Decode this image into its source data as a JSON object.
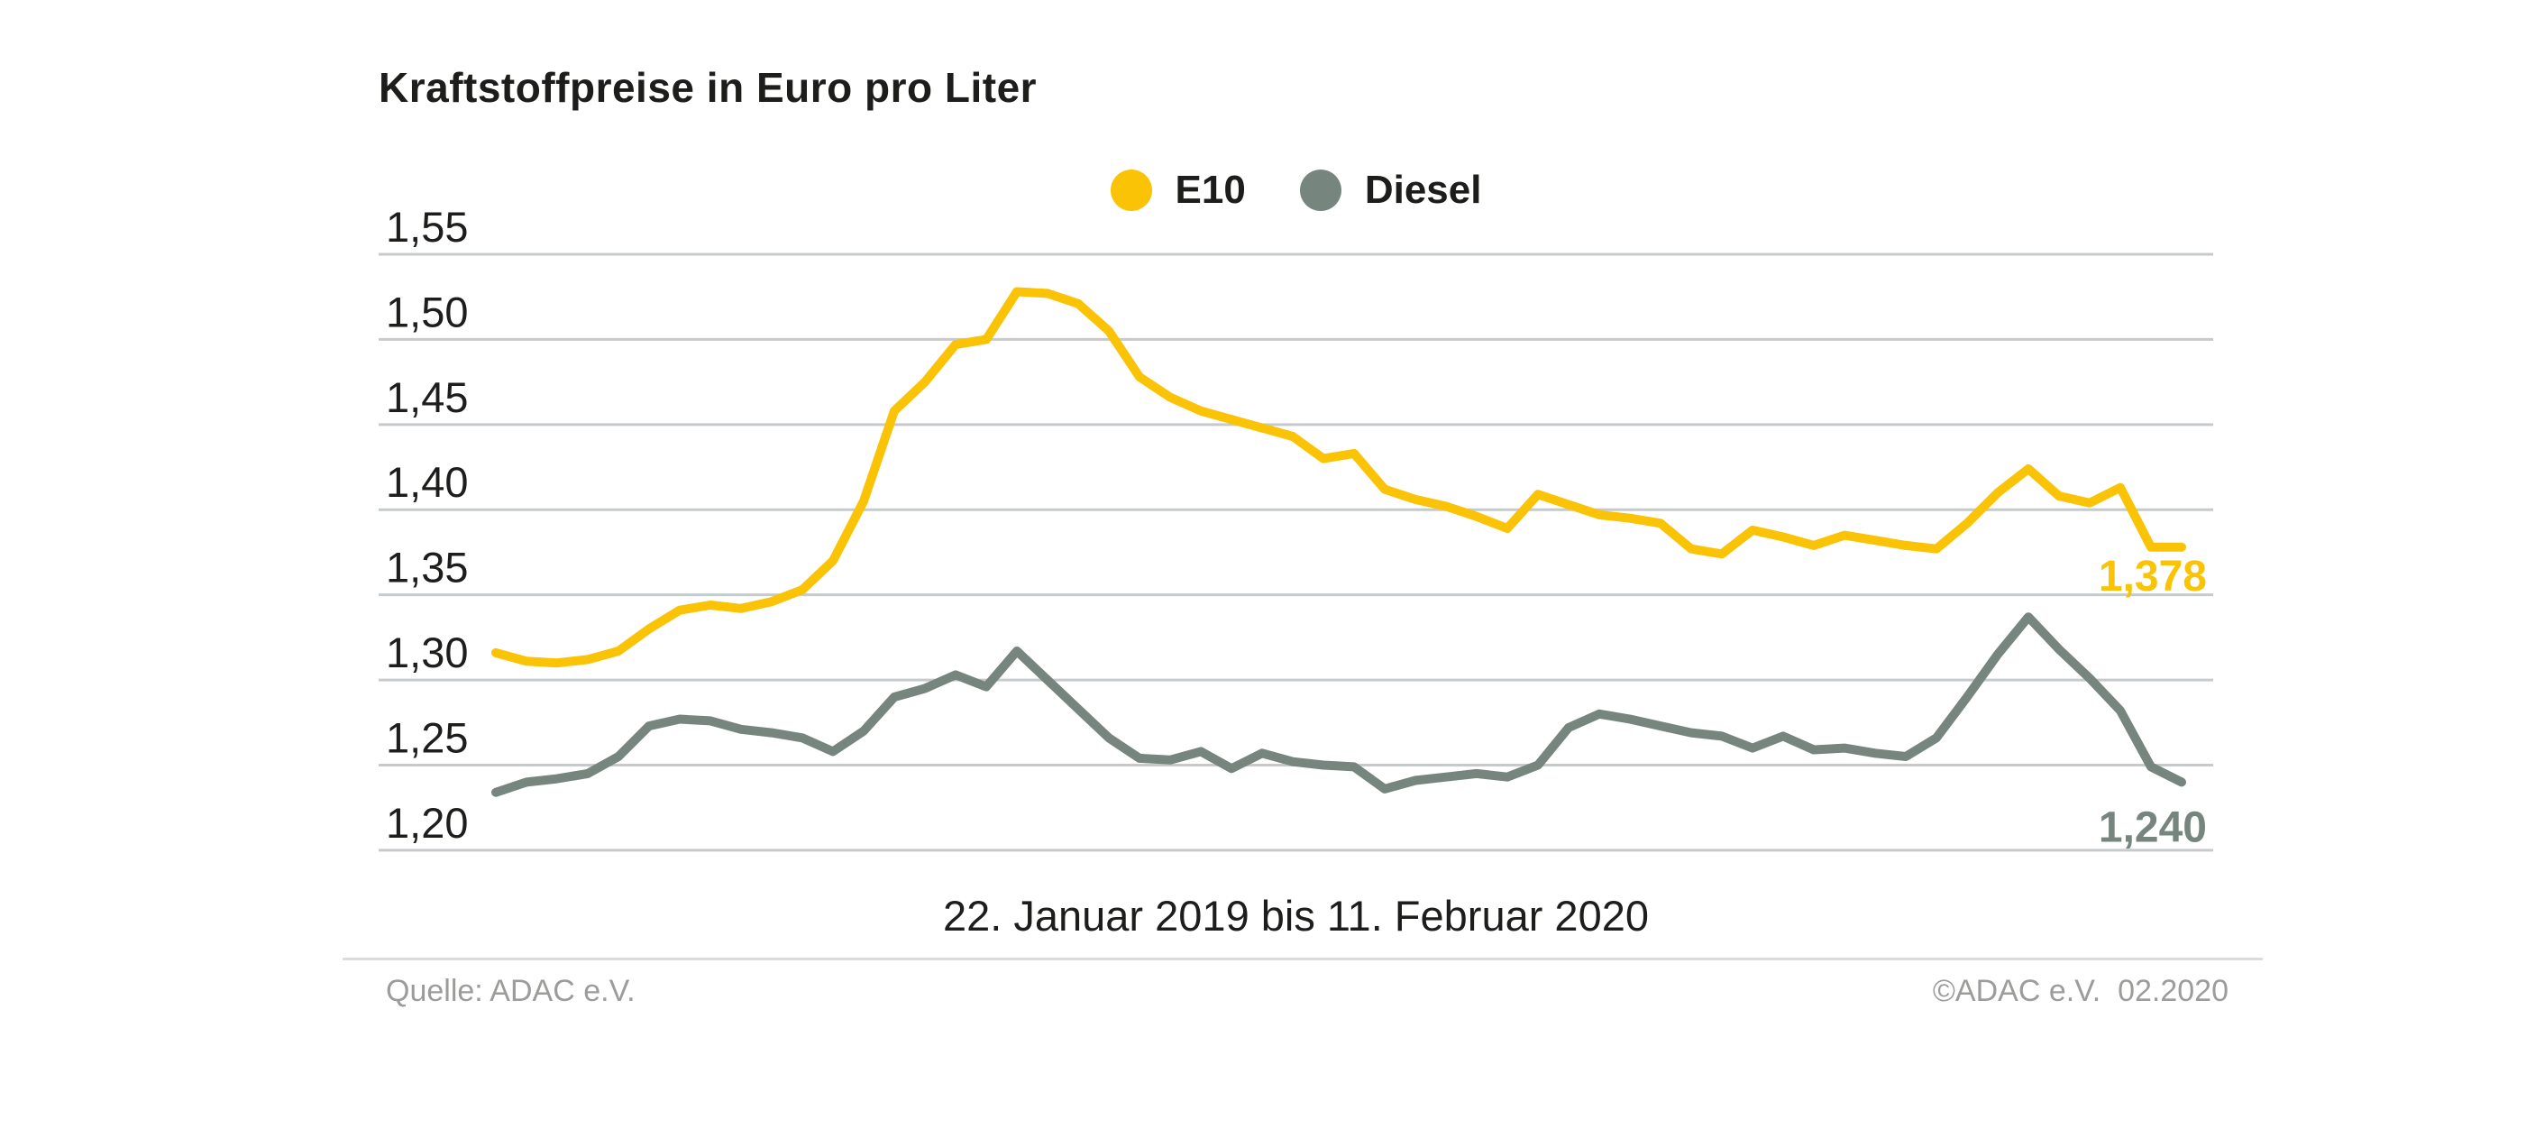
{
  "chart_data": {
    "type": "line",
    "title": "Kraftstoffpreise in Euro pro Liter",
    "x_axis_label": "22. Januar 2019 bis 11. Februar 2020",
    "x_description": "56 weekly price readings from 22 January 2019 to 11 February 2020",
    "grid": true,
    "legend_position": "top-center",
    "ylim": [
      1.2,
      1.55
    ],
    "y_ticks": [
      {
        "label": "1,55",
        "value": 1.55
      },
      {
        "label": "1,50",
        "value": 1.5
      },
      {
        "label": "1,45",
        "value": 1.45
      },
      {
        "label": "1,40",
        "value": 1.4
      },
      {
        "label": "1,35",
        "value": 1.35
      },
      {
        "label": "1,30",
        "value": 1.3
      },
      {
        "label": "1,25",
        "value": 1.25
      },
      {
        "label": "1,20",
        "value": 1.2
      }
    ],
    "series": [
      {
        "name": "E10",
        "color": "#fac306",
        "end_label": "1,378",
        "end_value": 1.378,
        "values": [
          1.316,
          1.311,
          1.31,
          1.312,
          1.317,
          1.33,
          1.341,
          1.344,
          1.342,
          1.346,
          1.353,
          1.37,
          1.405,
          1.458,
          1.475,
          1.497,
          1.5,
          1.528,
          1.527,
          1.521,
          1.505,
          1.478,
          1.466,
          1.458,
          1.453,
          1.448,
          1.443,
          1.43,
          1.433,
          1.412,
          1.406,
          1.402,
          1.396,
          1.389,
          1.409,
          1.403,
          1.397,
          1.395,
          1.392,
          1.377,
          1.374,
          1.388,
          1.384,
          1.379,
          1.385,
          1.382,
          1.379,
          1.377,
          1.392,
          1.41,
          1.424,
          1.408,
          1.404,
          1.413,
          1.378,
          1.378
        ]
      },
      {
        "name": "Diesel",
        "color": "#76867e",
        "end_label": "1,240",
        "end_value": 1.24,
        "values": [
          1.234,
          1.24,
          1.242,
          1.245,
          1.255,
          1.273,
          1.277,
          1.276,
          1.271,
          1.269,
          1.266,
          1.258,
          1.27,
          1.29,
          1.295,
          1.303,
          1.296,
          1.317,
          1.3,
          1.283,
          1.266,
          1.254,
          1.253,
          1.258,
          1.248,
          1.257,
          1.252,
          1.25,
          1.249,
          1.236,
          1.241,
          1.243,
          1.245,
          1.243,
          1.25,
          1.272,
          1.28,
          1.277,
          1.273,
          1.269,
          1.267,
          1.26,
          1.267,
          1.259,
          1.26,
          1.257,
          1.255,
          1.266,
          1.29,
          1.315,
          1.337,
          1.318,
          1.301,
          1.282,
          1.249,
          1.24
        ]
      }
    ]
  },
  "footer": {
    "source": "Quelle: ADAC e.V.",
    "copyright": "©ADAC e.V.  02.2020"
  },
  "style": {
    "grid_color": "#c6cacc",
    "text_color": "#1d1d1b",
    "footer_color": "#9c9c9b"
  }
}
